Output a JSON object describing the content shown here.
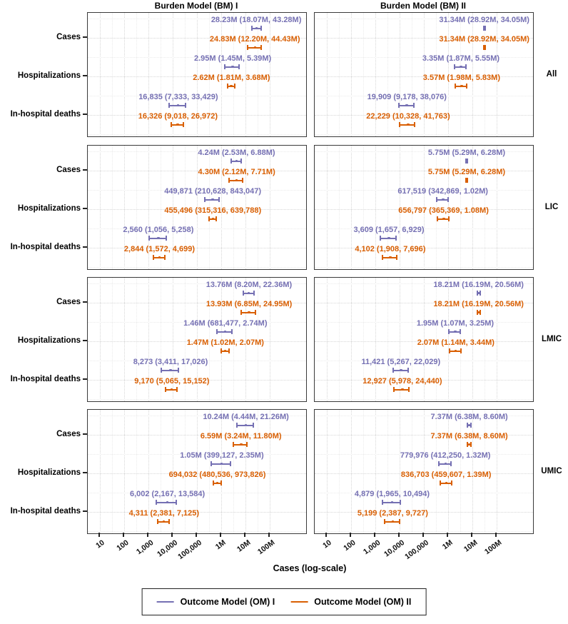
{
  "chart_data": {
    "type": "errorbar_forest",
    "title": "",
    "x_axis": {
      "label": "Cases (log-scale)",
      "scale": "log10",
      "tick_labels": [
        "10",
        "100",
        "1,000",
        "10,000",
        "100,000",
        "1M",
        "10M",
        "100M"
      ],
      "tick_values": [
        10,
        100,
        1000,
        10000,
        100000,
        1000000,
        10000000,
        100000000
      ],
      "range": [
        10,
        100000000
      ]
    },
    "grid": "dotted",
    "legend_position": "bottom",
    "col_facets": [
      "Burden Model (BM) I",
      "Burden Model (BM) II"
    ],
    "row_facets": [
      "All",
      "LIC",
      "LMIC",
      "UMIC"
    ],
    "categories": [
      "Cases",
      "Hospitalizations",
      "In-hospital deaths"
    ],
    "series": [
      {
        "name": "Outcome Model (OM) I",
        "color": "#7570b3"
      },
      {
        "name": "Outcome Model (OM) II",
        "color": "#d95f02"
      }
    ],
    "panels": [
      {
        "row": "All",
        "col": "Burden Model (BM) I",
        "items": [
          {
            "category": "Cases",
            "series": 0,
            "label": "28.23M (18.07M, 43.28M)",
            "est": 28230000,
            "lo": 18070000,
            "hi": 43280000
          },
          {
            "category": "Cases",
            "series": 1,
            "label": "24.83M (12.20M, 44.43M)",
            "est": 24830000,
            "lo": 12200000,
            "hi": 44430000
          },
          {
            "category": "Hospitalizations",
            "series": 0,
            "label": "2.95M (1.45M, 5.39M)",
            "est": 2950000,
            "lo": 1450000,
            "hi": 5390000
          },
          {
            "category": "Hospitalizations",
            "series": 1,
            "label": "2.62M (1.81M, 3.68M)",
            "est": 2620000,
            "lo": 1810000,
            "hi": 3680000
          },
          {
            "category": "In-hospital deaths",
            "series": 0,
            "label": "16,835 (7,333, 33,429)",
            "est": 16835,
            "lo": 7333,
            "hi": 33429
          },
          {
            "category": "In-hospital deaths",
            "series": 1,
            "label": "16,326 (9,018, 26,972)",
            "est": 16326,
            "lo": 9018,
            "hi": 26972
          }
        ]
      },
      {
        "row": "All",
        "col": "Burden Model (BM) II",
        "items": [
          {
            "category": "Cases",
            "series": 0,
            "label": "31.34M (28.92M, 34.05M)",
            "est": 31340000,
            "lo": 28920000,
            "hi": 34050000
          },
          {
            "category": "Cases",
            "series": 1,
            "label": "31.34M (28.92M, 34.05M)",
            "est": 31340000,
            "lo": 28920000,
            "hi": 34050000
          },
          {
            "category": "Hospitalizations",
            "series": 0,
            "label": "3.35M (1.87M, 5.55M)",
            "est": 3350000,
            "lo": 1870000,
            "hi": 5550000
          },
          {
            "category": "Hospitalizations",
            "series": 1,
            "label": "3.57M (1.98M, 5.83M)",
            "est": 3570000,
            "lo": 1980000,
            "hi": 5830000
          },
          {
            "category": "In-hospital deaths",
            "series": 0,
            "label": "19,909 (9,178, 38,076)",
            "est": 19909,
            "lo": 9178,
            "hi": 38076
          },
          {
            "category": "In-hospital deaths",
            "series": 1,
            "label": "22,229 (10,328, 41,763)",
            "est": 22229,
            "lo": 10328,
            "hi": 41763
          }
        ]
      },
      {
        "row": "LIC",
        "col": "Burden Model (BM) I",
        "items": [
          {
            "category": "Cases",
            "series": 0,
            "label": "4.24M (2.53M, 6.88M)",
            "est": 4240000,
            "lo": 2530000,
            "hi": 6880000
          },
          {
            "category": "Cases",
            "series": 1,
            "label": "4.30M (2.12M, 7.71M)",
            "est": 4300000,
            "lo": 2120000,
            "hi": 7710000
          },
          {
            "category": "Hospitalizations",
            "series": 0,
            "label": "449,871 (210,628, 843,047)",
            "est": 449871,
            "lo": 210628,
            "hi": 843047
          },
          {
            "category": "Hospitalizations",
            "series": 1,
            "label": "455,496 (315,316, 639,788)",
            "est": 455496,
            "lo": 315316,
            "hi": 639788
          },
          {
            "category": "In-hospital deaths",
            "series": 0,
            "label": "2,560 (1,056, 5,258)",
            "est": 2560,
            "lo": 1056,
            "hi": 5258
          },
          {
            "category": "In-hospital deaths",
            "series": 1,
            "label": "2,844 (1,572, 4,699)",
            "est": 2844,
            "lo": 1572,
            "hi": 4699
          }
        ]
      },
      {
        "row": "LIC",
        "col": "Burden Model (BM) II",
        "items": [
          {
            "category": "Cases",
            "series": 0,
            "label": "5.75M (5.29M, 6.28M)",
            "est": 5750000,
            "lo": 5290000,
            "hi": 6280000
          },
          {
            "category": "Cases",
            "series": 1,
            "label": "5.75M (5.29M, 6.28M)",
            "est": 5750000,
            "lo": 5290000,
            "hi": 6280000
          },
          {
            "category": "Hospitalizations",
            "series": 0,
            "label": "617,519 (342,869, 1.02M)",
            "est": 617519,
            "lo": 342869,
            "hi": 1020000
          },
          {
            "category": "Hospitalizations",
            "series": 1,
            "label": "656,797 (365,369, 1.08M)",
            "est": 656797,
            "lo": 365369,
            "hi": 1080000
          },
          {
            "category": "In-hospital deaths",
            "series": 0,
            "label": "3,609 (1,657, 6,929)",
            "est": 3609,
            "lo": 1657,
            "hi": 6929
          },
          {
            "category": "In-hospital deaths",
            "series": 1,
            "label": "4,102 (1,908, 7,696)",
            "est": 4102,
            "lo": 1908,
            "hi": 7696
          }
        ]
      },
      {
        "row": "LMIC",
        "col": "Burden Model (BM) I",
        "items": [
          {
            "category": "Cases",
            "series": 0,
            "label": "13.76M (8.20M, 22.36M)",
            "est": 13760000,
            "lo": 8200000,
            "hi": 22360000
          },
          {
            "category": "Cases",
            "series": 1,
            "label": "13.93M (6.85M, 24.95M)",
            "est": 13930000,
            "lo": 6850000,
            "hi": 24950000
          },
          {
            "category": "Hospitalizations",
            "series": 0,
            "label": "1.46M (681,477, 2.74M)",
            "est": 1460000,
            "lo": 681477,
            "hi": 2740000
          },
          {
            "category": "Hospitalizations",
            "series": 1,
            "label": "1.47M (1.02M, 2.07M)",
            "est": 1470000,
            "lo": 1020000,
            "hi": 2070000
          },
          {
            "category": "In-hospital deaths",
            "series": 0,
            "label": "8,273 (3,411, 17,026)",
            "est": 8273,
            "lo": 3411,
            "hi": 17026
          },
          {
            "category": "In-hospital deaths",
            "series": 1,
            "label": "9,170 (5,065, 15,152)",
            "est": 9170,
            "lo": 5065,
            "hi": 15152
          }
        ]
      },
      {
        "row": "LMIC",
        "col": "Burden Model (BM) II",
        "items": [
          {
            "category": "Cases",
            "series": 0,
            "label": "18.21M (16.19M, 20.56M)",
            "est": 18210000,
            "lo": 16190000,
            "hi": 20560000
          },
          {
            "category": "Cases",
            "series": 1,
            "label": "18.21M (16.19M, 20.56M)",
            "est": 18210000,
            "lo": 16190000,
            "hi": 20560000
          },
          {
            "category": "Hospitalizations",
            "series": 0,
            "label": "1.95M (1.07M, 3.25M)",
            "est": 1950000,
            "lo": 1070000,
            "hi": 3250000
          },
          {
            "category": "Hospitalizations",
            "series": 1,
            "label": "2.07M (1.14M, 3.44M)",
            "est": 2070000,
            "lo": 1140000,
            "hi": 3440000
          },
          {
            "category": "In-hospital deaths",
            "series": 0,
            "label": "11,421 (5,267, 22,029)",
            "est": 11421,
            "lo": 5267,
            "hi": 22029
          },
          {
            "category": "In-hospital deaths",
            "series": 1,
            "label": "12,927 (5,978, 24,440)",
            "est": 12927,
            "lo": 5978,
            "hi": 24440
          }
        ]
      },
      {
        "row": "UMIC",
        "col": "Burden Model (BM) I",
        "items": [
          {
            "category": "Cases",
            "series": 0,
            "label": "10.24M (4.44M, 21.26M)",
            "est": 10240000,
            "lo": 4440000,
            "hi": 21260000
          },
          {
            "category": "Cases",
            "series": 1,
            "label": "6.59M (3.24M, 11.80M)",
            "est": 6590000,
            "lo": 3240000,
            "hi": 11800000
          },
          {
            "category": "Hospitalizations",
            "series": 0,
            "label": "1.05M (399,127, 2.35M)",
            "est": 1050000,
            "lo": 399127,
            "hi": 2350000
          },
          {
            "category": "Hospitalizations",
            "series": 1,
            "label": "694,032 (480,536, 973,826)",
            "est": 694032,
            "lo": 480536,
            "hi": 973826
          },
          {
            "category": "In-hospital deaths",
            "series": 0,
            "label": "6,002 (2,167, 13,584)",
            "est": 6002,
            "lo": 2167,
            "hi": 13584
          },
          {
            "category": "In-hospital deaths",
            "series": 1,
            "label": "4,311 (2,381, 7,125)",
            "est": 4311,
            "lo": 2381,
            "hi": 7125
          }
        ]
      },
      {
        "row": "UMIC",
        "col": "Burden Model (BM) II",
        "items": [
          {
            "category": "Cases",
            "series": 0,
            "label": "7.37M (6.38M, 8.60M)",
            "est": 7370000,
            "lo": 6380000,
            "hi": 8600000
          },
          {
            "category": "Cases",
            "series": 1,
            "label": "7.37M (6.38M, 8.60M)",
            "est": 7370000,
            "lo": 6380000,
            "hi": 8600000
          },
          {
            "category": "Hospitalizations",
            "series": 0,
            "label": "779,976 (412,250, 1.32M)",
            "est": 779976,
            "lo": 412250,
            "hi": 1320000
          },
          {
            "category": "Hospitalizations",
            "series": 1,
            "label": "836,703 (459,607, 1.39M)",
            "est": 836703,
            "lo": 459607,
            "hi": 1390000
          },
          {
            "category": "In-hospital deaths",
            "series": 0,
            "label": "4,879 (1,965, 10,494)",
            "est": 4879,
            "lo": 1965,
            "hi": 10494
          },
          {
            "category": "In-hospital deaths",
            "series": 1,
            "label": "5,199 (2,387, 9,727)",
            "est": 5199,
            "lo": 2387,
            "hi": 9727
          }
        ]
      }
    ]
  }
}
